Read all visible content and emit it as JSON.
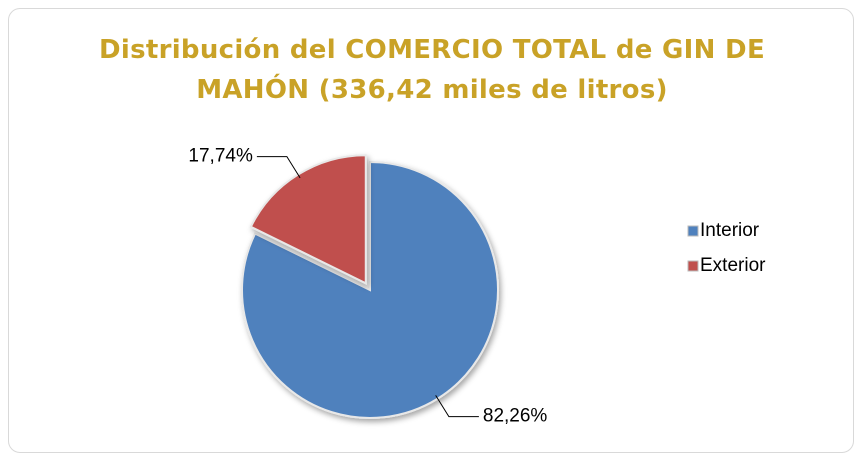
{
  "chart_data": {
    "type": "pie",
    "title": "Distribución del COMERCIO TOTAL de GIN DE MAHÓN (336,42 miles de litros)",
    "categories": [
      "Interior",
      "Exterior"
    ],
    "values": [
      82.26,
      17.74
    ],
    "value_labels": [
      "82,26%",
      "17,74%"
    ],
    "colors": [
      "#4f81bd",
      "#c0504d"
    ],
    "legend": "right"
  }
}
